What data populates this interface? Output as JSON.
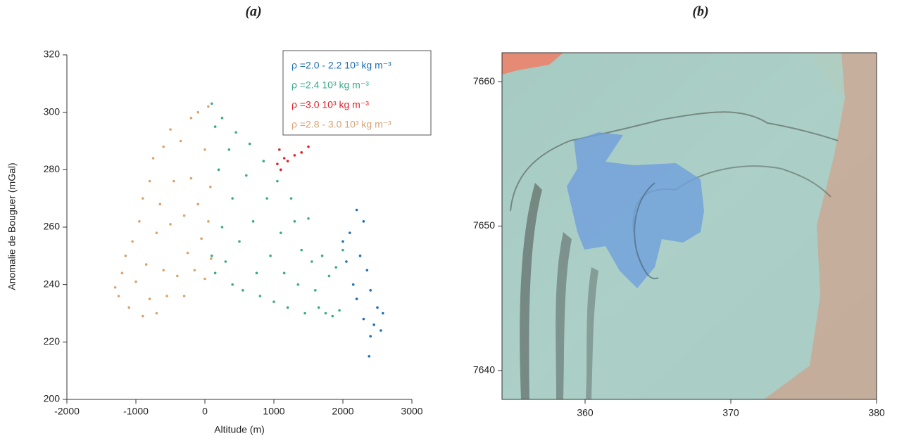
{
  "chart_data": [
    {
      "type": "scatter",
      "title": "(a)",
      "x_label": "Altitude (m)",
      "y_label": "Anomalie de Bouguer (mGal)",
      "xlim": [
        -2000,
        3000
      ],
      "xticks": [
        -2000,
        -1000,
        0,
        1000,
        2000,
        3000
      ],
      "ylim": [
        200,
        320
      ],
      "yticks": [
        200,
        220,
        240,
        260,
        280,
        300,
        320
      ],
      "legend": "top-right",
      "series": [
        {
          "name": "ρ =2.0 - 2.2 10³ kg m⁻³",
          "color": "#1f6fb4",
          "x": [
            2000,
            2050,
            2100,
            2150,
            2200,
            2200,
            2250,
            2300,
            2300,
            2350,
            2400,
            2400,
            2450,
            2500,
            2550,
            2380,
            2580
          ],
          "y": [
            255,
            248,
            258,
            240,
            266,
            235,
            250,
            262,
            228,
            245,
            238,
            222,
            226,
            232,
            224,
            215,
            230
          ]
        },
        {
          "name": "ρ =2.4 10³ kg m⁻³",
          "color": "#3aaa8a",
          "x": [
            100,
            100,
            150,
            150,
            200,
            250,
            250,
            300,
            350,
            400,
            400,
            450,
            500,
            550,
            600,
            650,
            700,
            750,
            800,
            850,
            900,
            950,
            1000,
            1050,
            1100,
            1150,
            1200,
            1250,
            1300,
            1350,
            1400,
            1450,
            1500,
            1550,
            1600,
            1650,
            1700,
            1750,
            1800,
            1850,
            1900,
            1950,
            2000
          ],
          "y": [
            303,
            250,
            295,
            244,
            280,
            298,
            260,
            248,
            287,
            240,
            270,
            293,
            255,
            238,
            278,
            289,
            262,
            244,
            236,
            283,
            270,
            250,
            234,
            276,
            258,
            244,
            232,
            270,
            262,
            240,
            252,
            230,
            263,
            248,
            238,
            232,
            250,
            230,
            243,
            229,
            246,
            231,
            252
          ]
        },
        {
          "name": "ρ =3.0 10³ kg m⁻³",
          "color": "#e0202a",
          "x": [
            1050,
            1080,
            1100,
            1150,
            1200,
            1300,
            1400,
            1500
          ],
          "y": [
            282,
            287,
            280,
            284,
            283,
            285,
            286,
            288
          ]
        },
        {
          "name": "ρ =2.8 - 3.0 10³ kg m⁻³",
          "color": "#d9a271",
          "x": [
            -1300,
            -1250,
            -1200,
            -1150,
            -1100,
            -1050,
            -1000,
            -950,
            -900,
            -900,
            -850,
            -800,
            -800,
            -750,
            -700,
            -700,
            -650,
            -600,
            -600,
            -550,
            -500,
            -500,
            -450,
            -400,
            -350,
            -300,
            -300,
            -250,
            -200,
            -200,
            -150,
            -100,
            -100,
            -50,
            0,
            0,
            50,
            50,
            80,
            90
          ],
          "y": [
            239,
            236,
            244,
            250,
            232,
            255,
            241,
            262,
            270,
            229,
            247,
            276,
            235,
            284,
            258,
            230,
            268,
            288,
            245,
            236,
            294,
            261,
            276,
            243,
            290,
            264,
            236,
            251,
            298,
            277,
            245,
            268,
            300,
            256,
            287,
            242,
            302,
            262,
            274,
            249
          ]
        }
      ]
    },
    {
      "type": "map",
      "title": "(b)",
      "xlim": [
        354.3,
        380
      ],
      "xticks": [
        360,
        370,
        380
      ],
      "ylim": [
        7638,
        7662
      ],
      "yticks": [
        7640,
        7650,
        7660
      ]
    }
  ]
}
